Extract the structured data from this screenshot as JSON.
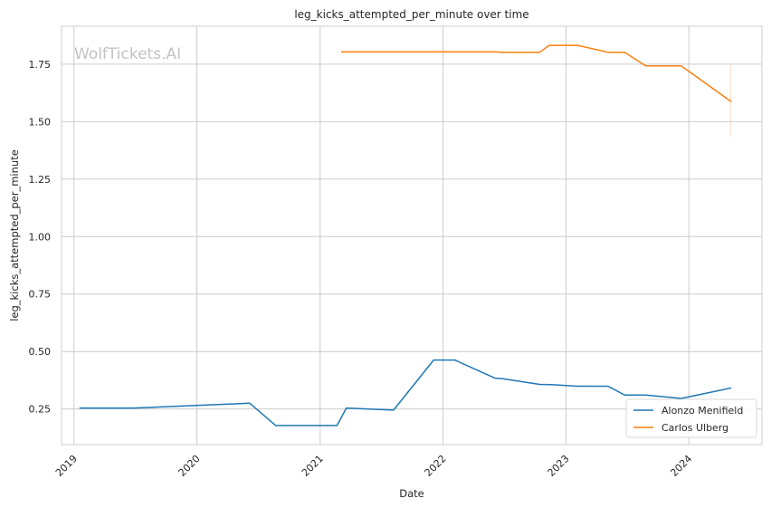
{
  "chart_data": {
    "type": "line",
    "title": "leg_kicks_attempted_per_minute over time",
    "xlabel": "Date",
    "ylabel": "leg_kicks_attempted_per_minute",
    "watermark": "WolfTickets.AI",
    "x_ticks": [
      "2019",
      "2020",
      "2021",
      "2022",
      "2023",
      "2024"
    ],
    "y_ticks": [
      "0.25",
      "0.50",
      "0.75",
      "1.00",
      "1.25",
      "1.50",
      "1.75"
    ],
    "xlim": [
      "2018-11-25",
      "2024-08-05"
    ],
    "ylim": [
      0.095,
      1.915
    ],
    "grid": true,
    "legend_position": "lower-right",
    "series": [
      {
        "name": "Alonzo Menifield",
        "color": "#1f77b4",
        "points": [
          {
            "x": "2019-01-19",
            "y": 0.254
          },
          {
            "x": "2019-06-29",
            "y": 0.254
          },
          {
            "x": "2020-06-06",
            "y": 0.275
          },
          {
            "x": "2020-08-22",
            "y": 0.178
          },
          {
            "x": "2021-02-20",
            "y": 0.178
          },
          {
            "x": "2021-03-20",
            "y": 0.254
          },
          {
            "x": "2021-08-07",
            "y": 0.245
          },
          {
            "x": "2021-12-04",
            "y": 0.463
          },
          {
            "x": "2022-02-05",
            "y": 0.463
          },
          {
            "x": "2022-06-04",
            "y": 0.384
          },
          {
            "x": "2022-06-25",
            "y": 0.382
          },
          {
            "x": "2022-10-15",
            "y": 0.357
          },
          {
            "x": "2022-11-19",
            "y": 0.356
          },
          {
            "x": "2023-02-04",
            "y": 0.349
          },
          {
            "x": "2023-05-06",
            "y": 0.349
          },
          {
            "x": "2023-06-24",
            "y": 0.311
          },
          {
            "x": "2023-08-26",
            "y": 0.311
          },
          {
            "x": "2023-12-09",
            "y": 0.296
          },
          {
            "x": "2024-05-04",
            "y": 0.341
          }
        ]
      },
      {
        "name": "Carlos Ulberg",
        "color": "#ff7f0e",
        "points": [
          {
            "x": "2021-03-06",
            "y": 1.804
          },
          {
            "x": "2022-06-04",
            "y": 1.804
          },
          {
            "x": "2022-06-25",
            "y": 1.802
          },
          {
            "x": "2022-10-15",
            "y": 1.802
          },
          {
            "x": "2022-11-12",
            "y": 1.832
          },
          {
            "x": "2023-02-04",
            "y": 1.832
          },
          {
            "x": "2023-05-06",
            "y": 1.802
          },
          {
            "x": "2023-06-24",
            "y": 1.802
          },
          {
            "x": "2023-08-26",
            "y": 1.743
          },
          {
            "x": "2023-12-09",
            "y": 1.743
          },
          {
            "x": "2024-05-04",
            "y": 1.589
          }
        ],
        "error_band": {
          "x": "2024-05-04",
          "low": 1.434,
          "high": 1.745
        }
      }
    ]
  }
}
